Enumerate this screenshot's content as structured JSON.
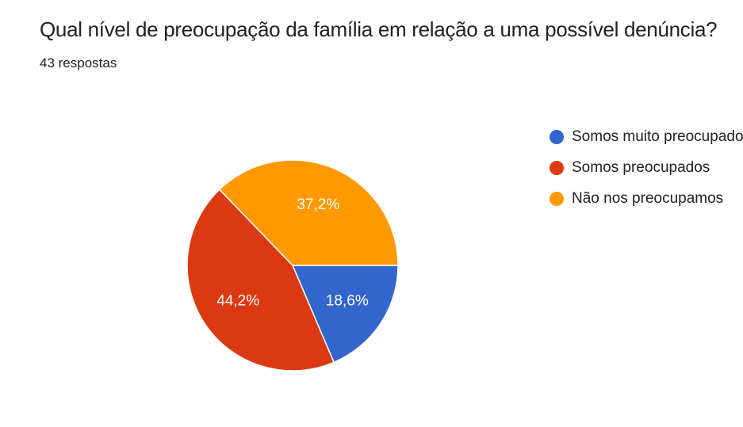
{
  "header": {
    "title": "Qual nível de preocupação da família em relação a uma possível denúncia?",
    "subtitle": "43 respostas"
  },
  "chart_data": {
    "type": "pie",
    "title": "Qual nível de preocupação da família em relação a uma possível denúncia?",
    "categories": [
      "Somos muito preocupados",
      "Somos preocupados",
      "Não nos preocupamos"
    ],
    "values": [
      18.6,
      44.2,
      37.2
    ],
    "value_labels": [
      "18,6%",
      "44,2%",
      "37,2%"
    ],
    "colors": [
      "#3366cc",
      "#dc3912",
      "#ff9900"
    ],
    "legend_position": "right"
  }
}
